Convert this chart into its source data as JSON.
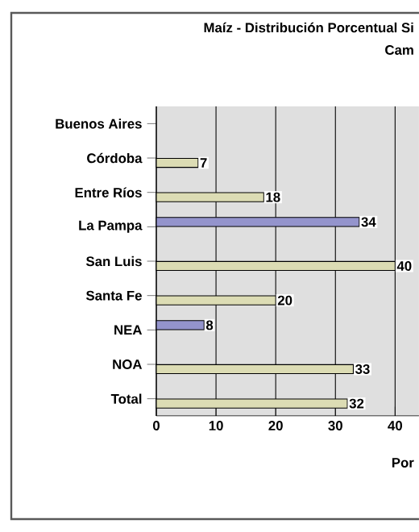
{
  "chart_data": {
    "type": "bar",
    "orientation": "horizontal",
    "title": "Maíz - Distribución Porcentual Si",
    "subtitle": "Cam",
    "xlabel": "Por",
    "categories": [
      "Buenos Aires",
      "Córdoba",
      "Entre Ríos",
      "La Pampa",
      "San Luis",
      "Santa Fe",
      "NEA",
      "NOA",
      "Total"
    ],
    "series": [
      {
        "color": "#9494cc",
        "values": [
          null,
          null,
          null,
          34,
          null,
          null,
          8,
          null,
          null
        ]
      },
      {
        "color": "#dcdcb4",
        "values": [
          null,
          7,
          18,
          null,
          40,
          20,
          null,
          33,
          32
        ]
      }
    ],
    "xlim": [
      0,
      44
    ],
    "xticks": [
      0,
      10,
      20,
      30,
      40
    ],
    "grid": "x",
    "data_labels": true
  }
}
